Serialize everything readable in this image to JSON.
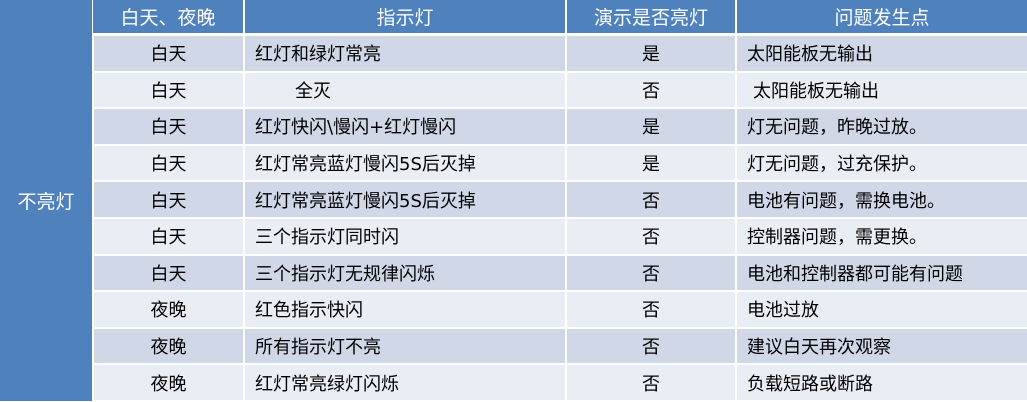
{
  "side_label": "不亮灯",
  "headers": [
    "白天、夜晚",
    "指示灯",
    "演示是否亮灯",
    "问题发生点"
  ],
  "rows": [
    [
      "白天",
      "红灯和绿灯常亮",
      "是",
      "太阳能板无输出"
    ],
    [
      "白天",
      "全灭",
      "否",
      "太阳能板无输出"
    ],
    [
      "白天",
      "红灯快闪\\慢闪+红灯慢闪",
      "是",
      "灯无问题，昨晚过放。"
    ],
    [
      "白天",
      "红灯常亮蓝灯慢闪5S后灭掉",
      "是",
      "灯无问题，过充保护。"
    ],
    [
      "白天",
      "红灯常亮蓝灯慢闪5S后灭掉",
      "否",
      "电池有问题，需换电池。"
    ],
    [
      "白天",
      "三个指示灯同时闪",
      "否",
      "控制器问题，需更换。"
    ],
    [
      "白天",
      "三个指示灯无规律闪烁",
      "否",
      "电池和控制器都可能有问题"
    ],
    [
      "夜晚",
      "红色指示快闪",
      "否",
      "电池过放"
    ],
    [
      "夜晚",
      "所有指示灯不亮",
      "否",
      "建议白天再次观察"
    ],
    [
      "夜晚",
      "红灯常亮绿灯闪烁",
      "否",
      "负载短路或断路"
    ]
  ],
  "colors": {
    "header": "#4f81bd",
    "row_dark": "#d0d8e8",
    "row_light": "#e9edf4"
  }
}
